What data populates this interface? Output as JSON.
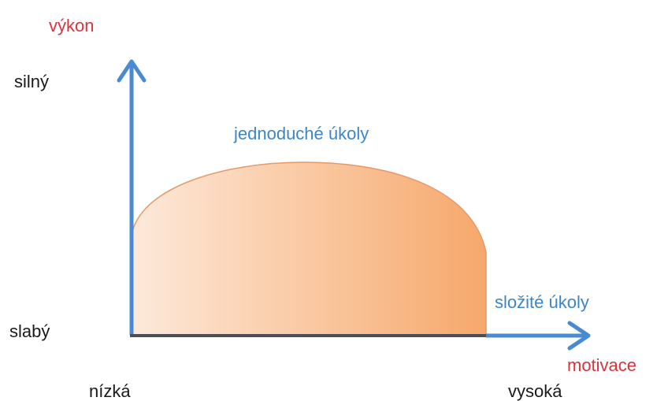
{
  "axes": {
    "y": {
      "label": "výkon",
      "high": "silný",
      "low": "slabý"
    },
    "x": {
      "label": "motivace",
      "low": "nízká",
      "high": "vysoká"
    }
  },
  "regions": [
    {
      "label": "jednoduché úkoly"
    },
    {
      "label": "složité úkoly"
    }
  ]
}
